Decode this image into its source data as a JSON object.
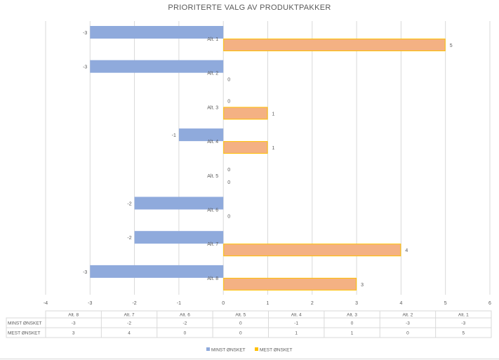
{
  "chart_data": {
    "type": "bar",
    "orientation": "horizontal",
    "title": "PRIORITERTE VALG AV PRODUKTPAKKER",
    "categories": [
      "Alt. 1",
      "Alt. 2",
      "Alt. 3",
      "Alt. 4",
      "Alt. 5",
      "Alt. 6",
      "Alt. 7",
      "Alt. 8"
    ],
    "series": [
      {
        "name": "MINST ØNSKET",
        "color": "#8faadc",
        "values": [
          -3,
          -3,
          0,
          -1,
          0,
          -2,
          -2,
          -3
        ]
      },
      {
        "name": "MEST ØNSKET",
        "color": "#f4b183",
        "border": "#ffc000",
        "values": [
          5,
          0,
          1,
          1,
          0,
          0,
          4,
          3
        ]
      }
    ],
    "xlim": [
      -4,
      6
    ],
    "xticks": [
      -4,
      -3,
      -2,
      -1,
      0,
      1,
      2,
      3,
      4,
      5,
      6
    ],
    "grid": true,
    "legend": "bottom",
    "data_table": {
      "columns": [
        "Alt. 8",
        "Alt. 7",
        "Alt. 6",
        "Alt. 5",
        "Alt. 4",
        "Alt. 3",
        "Alt. 2",
        "Alt. 1"
      ],
      "rows": [
        {
          "label": "MINST ØNSKET",
          "values": [
            "-3",
            "-2",
            "-2",
            "0",
            "-1",
            "0",
            "-3",
            "-3"
          ]
        },
        {
          "label": "MEST ØNSKET",
          "values": [
            "3",
            "4",
            "0",
            "0",
            "1",
            "1",
            "0",
            "5"
          ]
        }
      ]
    }
  }
}
